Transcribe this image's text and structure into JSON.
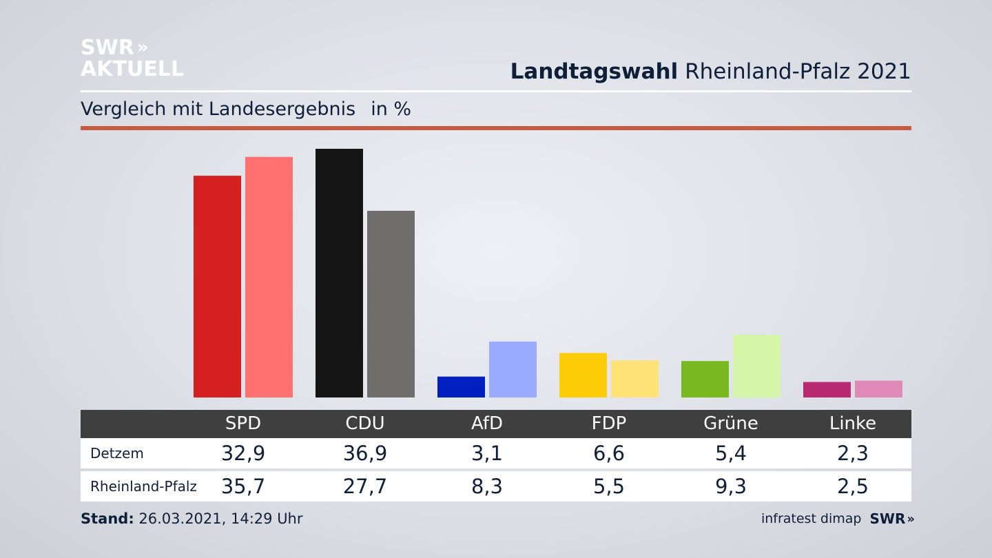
{
  "logo": {
    "line1": "SWR",
    "line1_chevrons": "»",
    "line2": "AKTUELL"
  },
  "header": {
    "title_bold": "Landtagswahl",
    "title_rest": "Rheinland-Pfalz 2021"
  },
  "subtitle": {
    "text": "Vergleich mit Landesergebnis",
    "unit": "in %"
  },
  "footer": {
    "stand_label": "Stand:",
    "stand_value": "26.03.2021, 14:29 Uhr",
    "source": "infratest dimap",
    "brand": "SWR",
    "brand_chevrons": "»"
  },
  "colors": {
    "red_rule": "#c85a42",
    "table_header": "#3f3f3f",
    "text": "#0f1f3a"
  },
  "chart_data": {
    "type": "bar",
    "categories": [
      "SPD",
      "CDU",
      "AfD",
      "FDP",
      "Grüne",
      "Linke"
    ],
    "series": [
      {
        "name": "Detzem",
        "values": [
          32.9,
          36.9,
          3.1,
          6.6,
          5.4,
          2.3
        ],
        "colors": [
          "#d42020",
          "#141414",
          "#0020c0",
          "#ffcc0a",
          "#78b820",
          "#b82a72"
        ]
      },
      {
        "name": "Rheinland-Pfalz",
        "values": [
          35.7,
          27.7,
          8.3,
          5.5,
          9.3,
          2.5
        ],
        "colors": [
          "#ff7070",
          "#6f6e6c",
          "#9aaaff",
          "#ffe278",
          "#d5f5a8",
          "#e088b8"
        ]
      }
    ],
    "display_values": {
      "Detzem": [
        "32,9",
        "36,9",
        "3,1",
        "6,6",
        "5,4",
        "2,3"
      ],
      "Rheinland-Pfalz": [
        "35,7",
        "27,7",
        "8,3",
        "5,5",
        "9,3",
        "2,5"
      ]
    },
    "ylim": [
      0,
      37
    ],
    "grid": false,
    "legend": "table-below"
  }
}
